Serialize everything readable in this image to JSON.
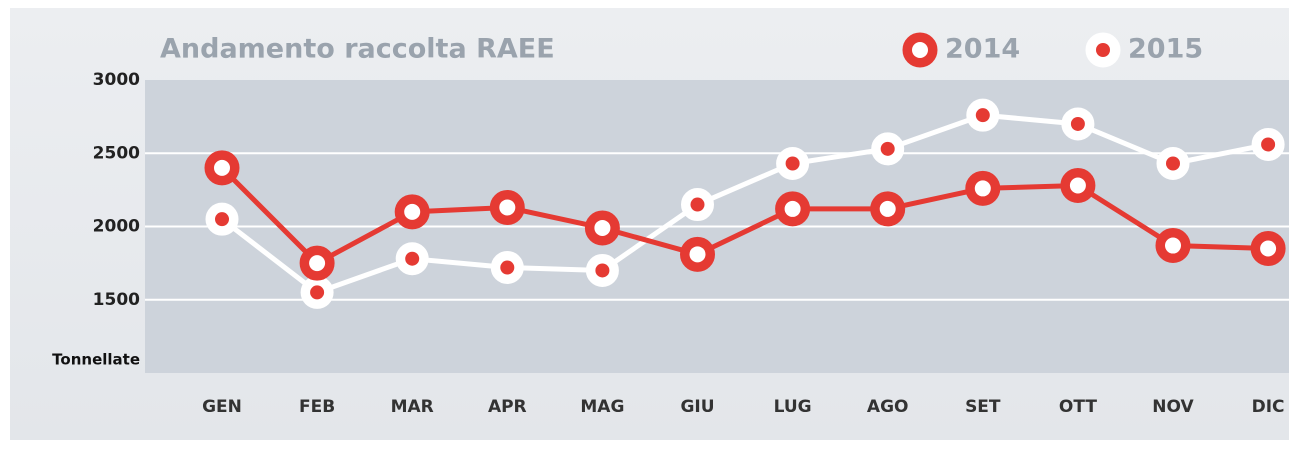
{
  "chart_data": {
    "type": "line",
    "title": "Andamento raccolta RAEE",
    "y_label": "Tonnellate",
    "categories": [
      "GEN",
      "FEB",
      "MAR",
      "APR",
      "MAG",
      "GIU",
      "LUG",
      "AGO",
      "SET",
      "OTT",
      "NOV",
      "DIC"
    ],
    "series": [
      {
        "name": "2014",
        "color": "#e53a33",
        "values": [
          2400,
          1750,
          2100,
          2130,
          1990,
          1810,
          2120,
          2120,
          2260,
          2280,
          1870,
          1850
        ]
      },
      {
        "name": "2015",
        "color": "#ffffff",
        "values": [
          2050,
          1550,
          1780,
          1720,
          1700,
          2150,
          2430,
          2530,
          2760,
          2700,
          2430,
          2560
        ]
      }
    ],
    "ylim": [
      1000,
      3000
    ],
    "yticks": [
      1500,
      2000,
      2500,
      3000
    ],
    "grid": true
  }
}
